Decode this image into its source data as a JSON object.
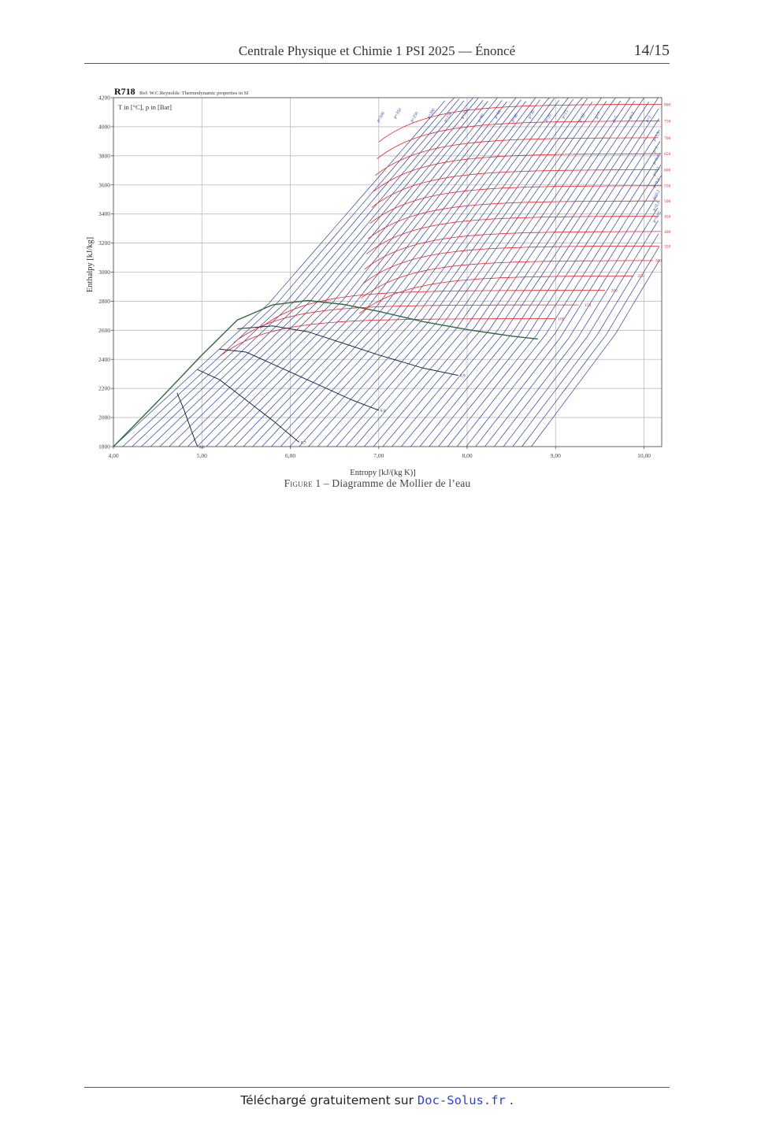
{
  "header": {
    "title": "Centrale Physique et Chimie 1 PSI 2025 — Énoncé",
    "page": "14/15"
  },
  "figure": {
    "caption_label": "Figure 1",
    "caption_sep": " – ",
    "caption_text": "Diagramme de Mollier de l’eau"
  },
  "chart_data": {
    "type": "line",
    "title": "R718",
    "subtitle": "Ref: W.C.Reynolds: Thermodynamic properties in SI",
    "units_note": "T in [°C], p in [Bar]",
    "xlabel": "Entropy [kJ/(kg K)]",
    "ylabel": "Enthalpy [kJ/kg]",
    "xlim": [
      4.0,
      10.2
    ],
    "ylim": [
      1800,
      4200
    ],
    "x_ticks": [
      "4,00",
      "5,00",
      "6,00",
      "7,00",
      "8,00",
      "9,00",
      "10,00"
    ],
    "y_ticks": [
      "1800",
      "2000",
      "2200",
      "2400",
      "2600",
      "2800",
      "3000",
      "3200",
      "3400",
      "3600",
      "3800",
      "4000",
      "4200"
    ],
    "grid": true,
    "colors": {
      "isobar": "#2e3f9a",
      "isotherm": "#e8242c",
      "saturation": "#2e6b3c",
      "quality": "#1c2840",
      "axis": "#555555",
      "grid": "#bbbbbb"
    },
    "saturation_curve": {
      "s": [
        4.0,
        4.5,
        5.0,
        5.4,
        5.8,
        6.2,
        6.6,
        7.0,
        7.5,
        8.0,
        8.5,
        8.8
      ],
      "h": [
        1800,
        2110,
        2430,
        2670,
        2775,
        2805,
        2778,
        2730,
        2660,
        2605,
        2560,
        2540
      ]
    },
    "vapor_quality_lines": [
      {
        "label": "0,9",
        "s": [
          5.4,
          5.8,
          6.2,
          6.6,
          7.0,
          7.5,
          7.9
        ],
        "h": [
          2610,
          2630,
          2590,
          2510,
          2430,
          2340,
          2290
        ]
      },
      {
        "label": "0,8",
        "s": [
          5.2,
          5.5,
          5.9,
          6.3,
          6.7,
          7.0
        ],
        "h": [
          2470,
          2450,
          2340,
          2230,
          2120,
          2050
        ]
      },
      {
        "label": "0,7",
        "s": [
          4.95,
          5.2,
          5.5,
          5.8,
          6.1
        ],
        "h": [
          2330,
          2260,
          2120,
          1980,
          1830
        ]
      },
      {
        "label": "0,6",
        "s": [
          4.72,
          4.8,
          4.9,
          4.95
        ],
        "h": [
          2170,
          2050,
          1880,
          1800
        ]
      }
    ],
    "isotherm_labels": [
      "800",
      "750",
      "700",
      "650",
      "600",
      "550",
      "500",
      "450",
      "400",
      "350",
      "300",
      "250",
      "200",
      "150",
      "100"
    ],
    "isotherm_plateau_h": [
      4155,
      4040,
      3925,
      3815,
      3705,
      3595,
      3490,
      3385,
      3280,
      3180,
      3080,
      2975,
      2875,
      2775,
      2680
    ],
    "isotherm_end_s": [
      10.2,
      10.2,
      10.2,
      10.2,
      10.2,
      10.2,
      10.2,
      10.2,
      10.2,
      10.2,
      10.1,
      9.9,
      9.6,
      9.3,
      9.0
    ],
    "isobar_labels": [
      "p=500",
      "p=350",
      "p=250",
      "p=200",
      "p=150",
      "p=100",
      "p=80",
      "p=60",
      "p=40",
      "p=30",
      "p=20",
      "p=15",
      "p=10",
      "p=7",
      "p=5",
      "p=3",
      "p=2",
      "p=1,5",
      "p=1",
      "p=0,7",
      "p=0,5",
      "p=0,3",
      "p=0,2",
      "p=0,1",
      "p=0,05"
    ]
  },
  "footer": {
    "text": "Téléchargé gratuitement sur",
    "link": "Doc-Solus.fr",
    "period": "."
  }
}
